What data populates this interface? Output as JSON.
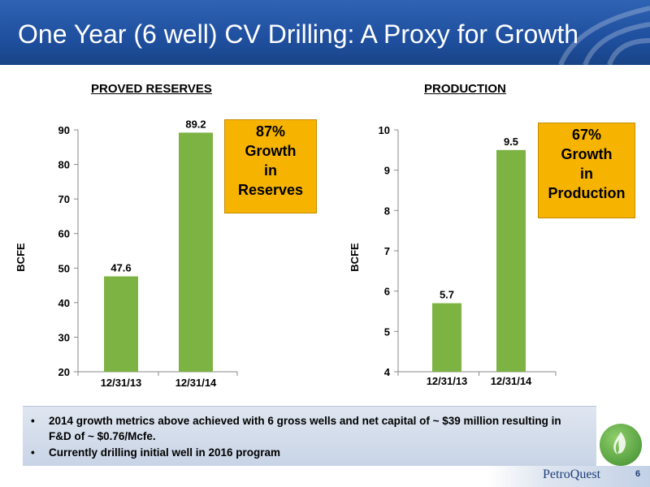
{
  "slide": {
    "title": "One Year (6 well) CV Drilling: A Proxy for Growth",
    "page_number": "6",
    "brand": "PetroQuest"
  },
  "callouts": {
    "reserves": [
      "87%",
      "Growth",
      "in",
      "Reserves"
    ],
    "production": [
      "67%",
      "Growth",
      "in",
      "Production"
    ]
  },
  "bullets": [
    "2014 growth metrics above achieved with 6 gross wells and net capital of ~ $39 million resulting in F&D of ~ $0.76/Mcfe.",
    "Currently drilling initial well in 2016 program"
  ],
  "bullet_symbol": "•",
  "colors": {
    "bar": "#7cb342",
    "callout": "#f6b400",
    "header": "#1f4f9f"
  },
  "chart_data": [
    {
      "type": "bar",
      "title": "PROVED RESERVES",
      "categories": [
        "12/31/13",
        "12/31/14"
      ],
      "values": [
        47.6,
        89.2
      ],
      "ylabel": "BCFE",
      "xlabel": "",
      "ylim": [
        20,
        90
      ],
      "yticks": [
        20,
        30,
        40,
        50,
        60,
        70,
        80,
        90
      ],
      "data_labels": [
        "47.6",
        "89.2"
      ],
      "grid": false
    },
    {
      "type": "bar",
      "title": "PRODUCTION",
      "categories": [
        "12/31/13",
        "12/31/14"
      ],
      "values": [
        5.7,
        9.5
      ],
      "ylabel": "BCFE",
      "xlabel": "",
      "ylim": [
        4,
        10
      ],
      "yticks": [
        4,
        5,
        6,
        7,
        8,
        9,
        10
      ],
      "data_labels": [
        "5.7",
        "9.5"
      ],
      "grid": false
    }
  ]
}
